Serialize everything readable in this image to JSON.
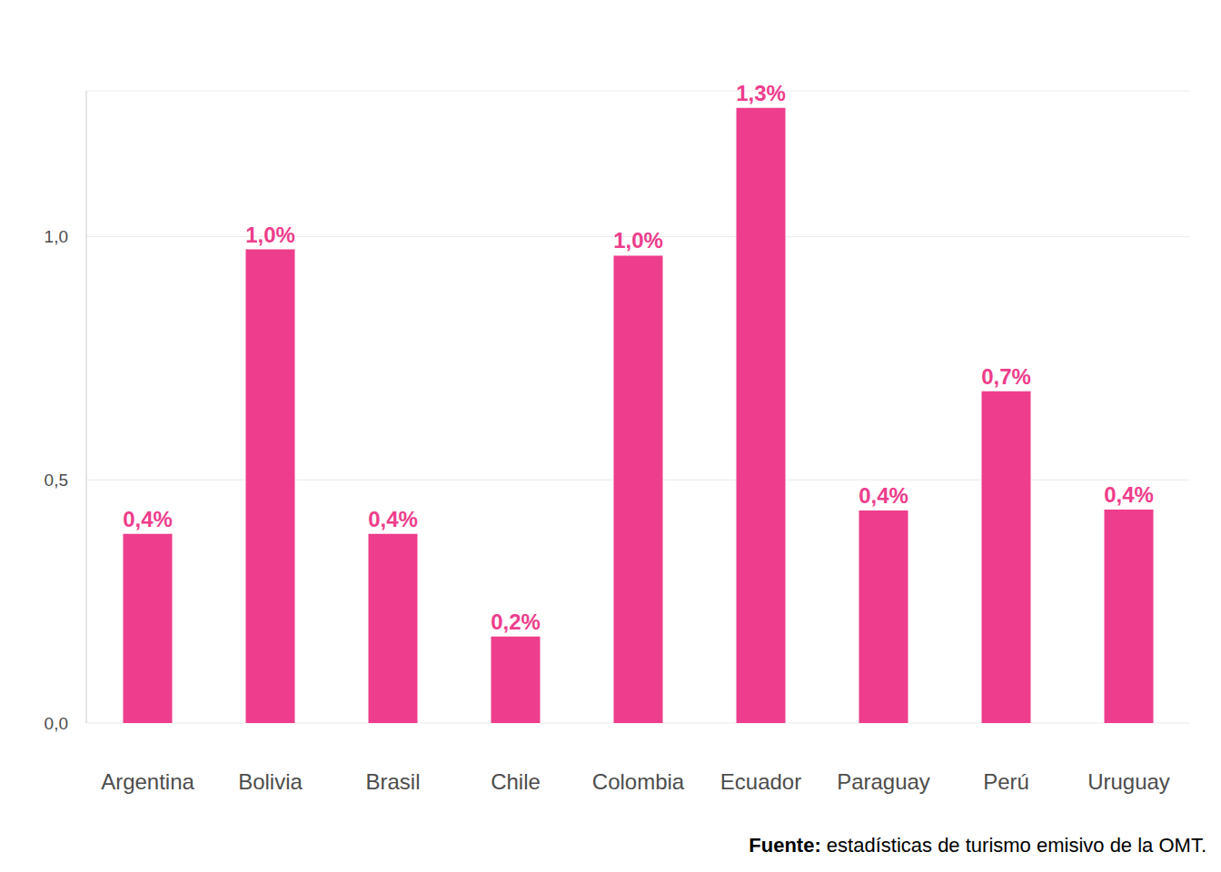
{
  "chart_data": {
    "type": "bar",
    "categories": [
      "Argentina",
      "Bolivia",
      "Brasil",
      "Chile",
      "Colombia",
      "Ecuador",
      "Paraguay",
      "Perú",
      "Uruguay"
    ],
    "values": [
      0.389,
      0.974,
      0.389,
      0.178,
      0.961,
      1.265,
      0.437,
      0.682,
      0.439
    ],
    "value_labels": [
      "0,4%",
      "1,0%",
      "0,4%",
      "0,2%",
      "1,0%",
      "1,3%",
      "0,4%",
      "0,7%",
      "0,4%"
    ],
    "color": "#ee3d8c",
    "ylim": [
      0,
      1.3
    ],
    "yticks": [
      {
        "value": 0,
        "label": "0,0"
      },
      {
        "value": 0.5,
        "label": "0,5"
      },
      {
        "value": 1,
        "label": "1,0"
      }
    ],
    "grid": true,
    "data_labels": true,
    "annotations": [
      "Fuente: estadísticas de turismo emisivo de la OMT."
    ]
  }
}
